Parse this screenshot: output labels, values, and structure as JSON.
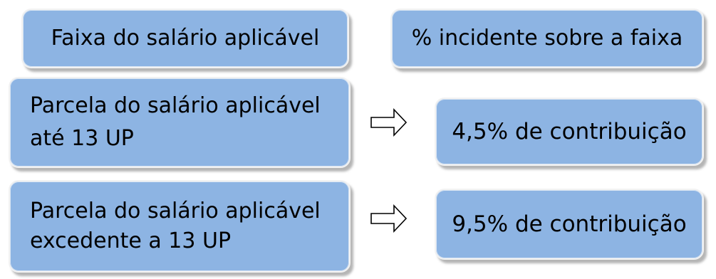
{
  "headers": {
    "left": "Faixa do salário aplicável",
    "right": "% incidente sobre a faixa"
  },
  "rows": [
    {
      "range_line1": "Parcela do salário aplicável",
      "range_line2": "até 13 UP",
      "rate": "4,5% de contribuição"
    },
    {
      "range_line1": "Parcela do salário aplicável",
      "range_line2": "excedente a 13 UP",
      "rate": "9,5% de contribuição"
    }
  ],
  "colors": {
    "box_fill": "#8db4e3",
    "box_border": "#f2f2f2",
    "arrow_stroke": "#000000"
  },
  "icons": {
    "arrow": "right-arrow-outline-icon"
  }
}
